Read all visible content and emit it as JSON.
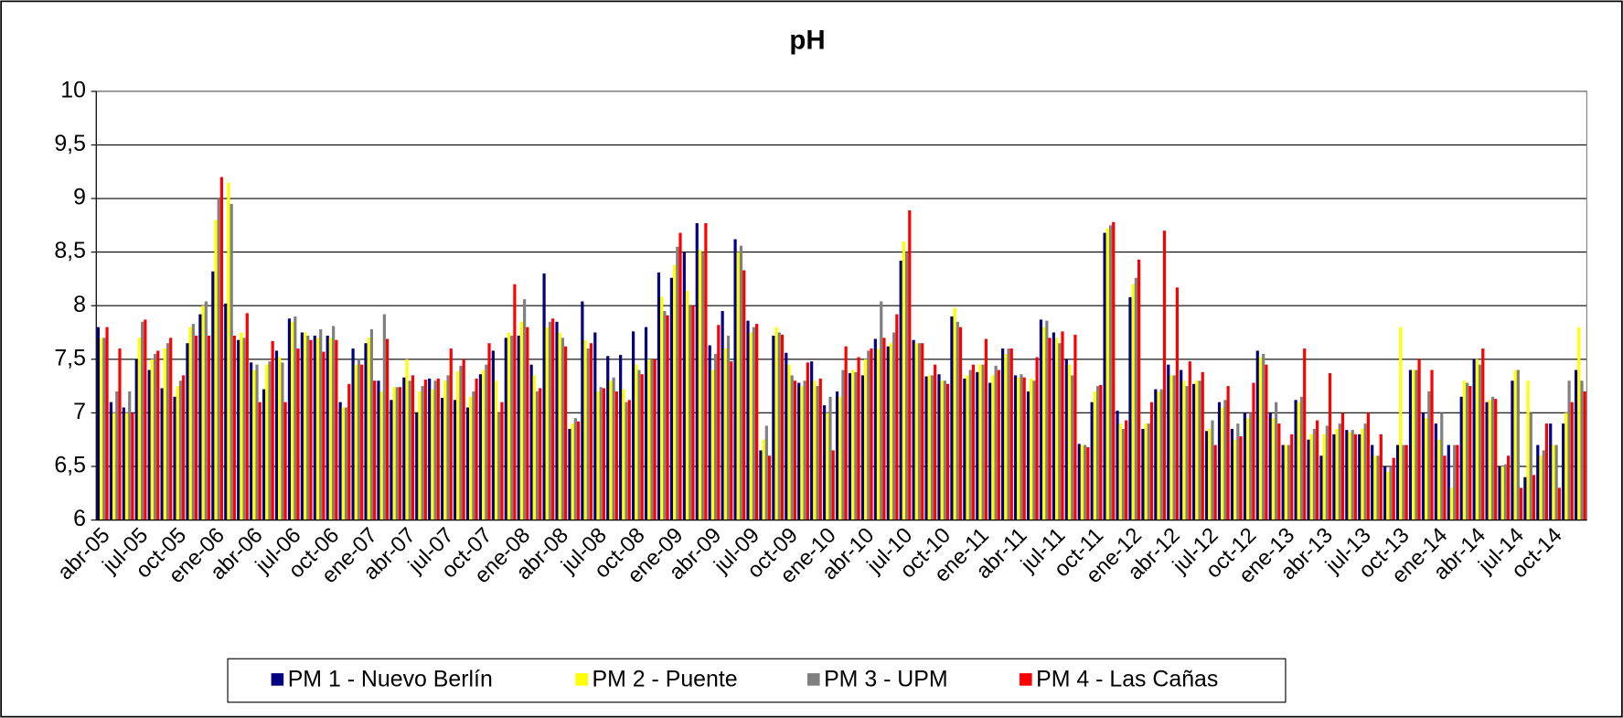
{
  "chart_data": {
    "type": "bar",
    "title": "pH",
    "categories": [
      "abr-05",
      null,
      null,
      "jul-05",
      null,
      null,
      "oct-05",
      null,
      null,
      "ene-06",
      null,
      null,
      "abr-06",
      null,
      null,
      "jul-06",
      null,
      null,
      "oct-06",
      null,
      null,
      "ene-07",
      null,
      null,
      "abr-07",
      null,
      null,
      "jul-07",
      null,
      null,
      "oct-07",
      null,
      null,
      "ene-08",
      null,
      null,
      "abr-08",
      null,
      null,
      "jul-08",
      null,
      null,
      "oct-08",
      null,
      null,
      "ene-09",
      null,
      null,
      "abr-09",
      null,
      null,
      "jul-09",
      null,
      null,
      "oct-09",
      null,
      null,
      "ene-10",
      null,
      null,
      "abr-10",
      null,
      null,
      "jul-10",
      null,
      null,
      "oct-10",
      null,
      null,
      "ene-11",
      null,
      null,
      "abr-11",
      null,
      null,
      "jul-11",
      null,
      null,
      "oct-11",
      null,
      null,
      "ene-12",
      null,
      null,
      "abr-12",
      null,
      null,
      "jul-12",
      null,
      null,
      "oct-12",
      null,
      null,
      "ene-13",
      null,
      null,
      "abr-13",
      null,
      null,
      "jul-13",
      null,
      null,
      "oct-13",
      null,
      null,
      "ene-14",
      null,
      null,
      "abr-14",
      null,
      null,
      "jul-14",
      null,
      null,
      "oct-14",
      null,
      null
    ],
    "series": [
      {
        "name": "PM 1 - Nuevo Berlín",
        "color": "#000080",
        "values": [
          7.8,
          7.1,
          7.05,
          7.5,
          7.4,
          7.23,
          7.15,
          7.65,
          7.92,
          8.32,
          8.02,
          7.68,
          7.47,
          7.22,
          7.58,
          7.88,
          7.75,
          7.72,
          7.72,
          7.1,
          7.6,
          7.65,
          7.3,
          7.12,
          7.33,
          7.0,
          7.32,
          7.14,
          7.12,
          7.05,
          7.36,
          7.58,
          7.7,
          7.72,
          7.45,
          8.3,
          7.85,
          6.85,
          8.04,
          7.75,
          7.53,
          7.54,
          7.76,
          7.8,
          8.31,
          8.26,
          8.5,
          8.77,
          7.63,
          7.95,
          8.62,
          7.86,
          6.65,
          7.72,
          7.56,
          7.28,
          7.48,
          7.07,
          7.2,
          7.37,
          7.35,
          7.69,
          7.62,
          8.42,
          7.68,
          7.34,
          7.36,
          7.9,
          7.32,
          7.38,
          7.28,
          7.6,
          7.35,
          7.2,
          7.87,
          7.75,
          7.5,
          6.71,
          7.1,
          8.68,
          7.02,
          8.08,
          6.85,
          7.22,
          7.45,
          7.4,
          7.27,
          6.83,
          7.1,
          6.85,
          7.0,
          7.58,
          7.0,
          6.7,
          7.12,
          6.75,
          6.6,
          6.8,
          6.84,
          6.8,
          6.7,
          6.5,
          6.7,
          7.4,
          7.0,
          6.9,
          6.7,
          7.15,
          7.5,
          7.1,
          6.5,
          7.3,
          6.4,
          6.7,
          6.9,
          6.9,
          7.4
        ]
      },
      {
        "name": "PM 2 - Puente",
        "color": "#ffff00",
        "values": [
          7.7,
          7.0,
          7.0,
          7.7,
          7.5,
          7.6,
          7.25,
          7.8,
          8.0,
          8.8,
          9.15,
          7.75,
          7.4,
          7.45,
          7.52,
          7.85,
          7.75,
          7.7,
          7.7,
          7.05,
          7.45,
          7.7,
          7.2,
          7.24,
          7.5,
          7.2,
          7.22,
          7.3,
          7.39,
          7.15,
          7.4,
          7.3,
          7.75,
          7.85,
          7.35,
          7.8,
          7.75,
          6.9,
          7.68,
          7.2,
          7.3,
          7.22,
          7.45,
          7.5,
          8.08,
          8.38,
          8.14,
          8.52,
          7.4,
          7.6,
          8.5,
          7.75,
          6.75,
          7.8,
          7.45,
          7.25,
          7.3,
          7.0,
          7.15,
          7.4,
          7.5,
          7.6,
          7.65,
          8.6,
          7.65,
          7.35,
          7.3,
          7.98,
          7.35,
          7.45,
          7.35,
          7.55,
          7.33,
          7.32,
          7.8,
          7.7,
          7.45,
          6.7,
          7.2,
          8.72,
          6.9,
          8.2,
          6.9,
          7.2,
          7.35,
          7.3,
          7.3,
          6.85,
          7.05,
          6.75,
          6.95,
          7.52,
          6.95,
          6.7,
          7.1,
          6.8,
          6.8,
          6.85,
          6.82,
          6.85,
          6.6,
          6.45,
          7.8,
          7.4,
          6.95,
          6.75,
          6.3,
          7.3,
          7.5,
          7.12,
          6.5,
          7.4,
          7.3,
          6.6,
          6.7,
          7.0,
          7.8
        ]
      },
      {
        "name": "PM 3 - UPM",
        "color": "#808080",
        "values": [
          7.7,
          7.2,
          7.2,
          7.85,
          7.55,
          7.65,
          7.3,
          7.83,
          8.04,
          9.0,
          8.95,
          7.7,
          7.45,
          7.48,
          7.47,
          7.9,
          7.72,
          7.78,
          7.81,
          7.05,
          7.5,
          7.78,
          7.92,
          7.24,
          7.3,
          7.25,
          7.3,
          7.35,
          7.44,
          7.2,
          7.45,
          7.0,
          7.72,
          8.06,
          7.2,
          7.85,
          7.7,
          6.95,
          7.6,
          7.24,
          7.33,
          7.1,
          7.4,
          7.5,
          7.95,
          8.55,
          8.0,
          8.5,
          7.55,
          7.72,
          8.56,
          7.8,
          6.88,
          7.75,
          7.35,
          7.3,
          7.25,
          7.15,
          7.4,
          7.38,
          7.58,
          8.04,
          7.75,
          8.5,
          7.65,
          7.35,
          7.3,
          7.85,
          7.4,
          7.45,
          7.44,
          7.6,
          7.36,
          7.3,
          7.86,
          7.65,
          7.35,
          6.7,
          7.25,
          8.75,
          6.85,
          8.26,
          6.9,
          7.22,
          7.35,
          7.25,
          7.3,
          6.93,
          7.12,
          6.9,
          7.0,
          7.55,
          7.1,
          6.7,
          7.15,
          6.85,
          6.88,
          6.9,
          6.84,
          6.9,
          6.6,
          6.5,
          6.7,
          7.4,
          7.2,
          7.0,
          6.7,
          7.28,
          7.45,
          7.15,
          6.52,
          7.4,
          7.0,
          6.65,
          6.7,
          7.3,
          7.3
        ]
      },
      {
        "name": "PM 4 - Las Cañas",
        "color": "#ff0000",
        "values": [
          7.8,
          7.6,
          7.0,
          7.87,
          7.58,
          7.7,
          7.35,
          7.72,
          7.72,
          9.2,
          7.72,
          7.93,
          7.1,
          7.67,
          7.1,
          7.6,
          7.68,
          7.57,
          7.68,
          7.27,
          7.45,
          7.3,
          7.69,
          7.24,
          7.35,
          7.31,
          7.32,
          7.6,
          7.5,
          7.32,
          7.65,
          7.1,
          8.2,
          7.8,
          7.23,
          7.88,
          7.62,
          6.92,
          7.65,
          7.23,
          7.2,
          7.12,
          7.36,
          7.5,
          7.91,
          8.68,
          8.0,
          8.77,
          7.82,
          7.48,
          8.33,
          7.83,
          6.6,
          7.73,
          7.3,
          7.47,
          7.32,
          6.65,
          7.62,
          7.52,
          7.6,
          7.7,
          7.92,
          8.89,
          7.65,
          7.45,
          7.27,
          7.8,
          7.45,
          7.69,
          7.4,
          7.6,
          7.33,
          7.52,
          7.7,
          7.76,
          7.73,
          6.68,
          7.26,
          8.78,
          6.93,
          8.43,
          7.1,
          8.7,
          8.17,
          7.48,
          7.38,
          6.7,
          7.25,
          6.78,
          7.28,
          7.45,
          6.9,
          6.8,
          7.6,
          6.93,
          7.37,
          7.0,
          6.8,
          7.0,
          6.8,
          6.58,
          6.7,
          7.5,
          7.4,
          6.6,
          6.7,
          7.25,
          7.6,
          7.13,
          6.6,
          6.3,
          6.42,
          6.9,
          6.3,
          7.1,
          7.2
        ]
      }
    ],
    "ylim": [
      6,
      10
    ],
    "yticks": [
      6,
      {
        "value": 6.5,
        "label": "6,5"
      },
      7,
      {
        "value": 7.5,
        "label": "7,5"
      },
      8,
      {
        "value": 8.5,
        "label": "8,5"
      },
      9,
      {
        "value": 9.5,
        "label": "9,5"
      },
      10
    ],
    "grid": true,
    "legend": "bottom"
  }
}
